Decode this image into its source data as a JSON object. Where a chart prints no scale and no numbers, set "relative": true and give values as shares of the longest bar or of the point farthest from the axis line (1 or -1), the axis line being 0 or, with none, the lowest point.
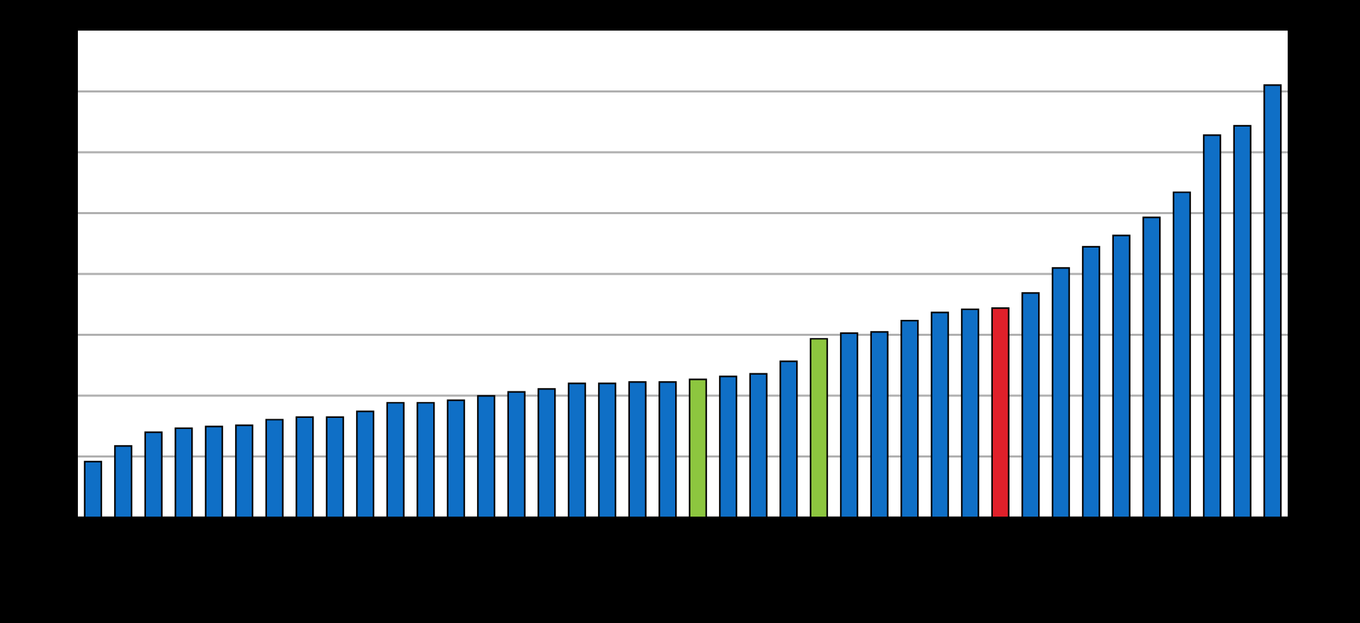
{
  "chart_data": {
    "type": "bar",
    "relative": true,
    "grid": "y",
    "categories": [
      null,
      null,
      null,
      null,
      null,
      null,
      null,
      null,
      null,
      null,
      null,
      null,
      null,
      null,
      null,
      null,
      null,
      null,
      null,
      null,
      null,
      null,
      null,
      null,
      null,
      null,
      null,
      null,
      null,
      null,
      null,
      null,
      null,
      null,
      null,
      null,
      null,
      null,
      null,
      null
    ],
    "values": [
      0.129,
      0.165,
      0.197,
      0.206,
      0.21,
      0.213,
      0.226,
      0.232,
      0.232,
      0.245,
      0.265,
      0.265,
      0.271,
      0.281,
      0.29,
      0.297,
      0.31,
      0.31,
      0.313,
      0.313,
      0.319,
      0.326,
      0.332,
      0.361,
      0.413,
      0.426,
      0.429,
      0.455,
      0.474,
      0.481,
      0.484,
      0.519,
      0.577,
      0.626,
      0.652,
      0.694,
      0.752,
      0.884,
      0.906,
      1
    ],
    "colors": [
      "#0f6fc6",
      "#0f6fc6",
      "#0f6fc6",
      "#0f6fc6",
      "#0f6fc6",
      "#0f6fc6",
      "#0f6fc6",
      "#0f6fc6",
      "#0f6fc6",
      "#0f6fc6",
      "#0f6fc6",
      "#0f6fc6",
      "#0f6fc6",
      "#0f6fc6",
      "#0f6fc6",
      "#0f6fc6",
      "#0f6fc6",
      "#0f6fc6",
      "#0f6fc6",
      "#0f6fc6",
      "#8dc63f",
      "#0f6fc6",
      "#0f6fc6",
      "#0f6fc6",
      "#8dc63f",
      "#0f6fc6",
      "#0f6fc6",
      "#0f6fc6",
      "#0f6fc6",
      "#0f6fc6",
      "#e0202a",
      "#0f6fc6",
      "#0f6fc6",
      "#0f6fc6",
      "#0f6fc6",
      "#0f6fc6",
      "#0f6fc6",
      "#0f6fc6",
      "#0f6fc6",
      "#0f6fc6"
    ]
  }
}
